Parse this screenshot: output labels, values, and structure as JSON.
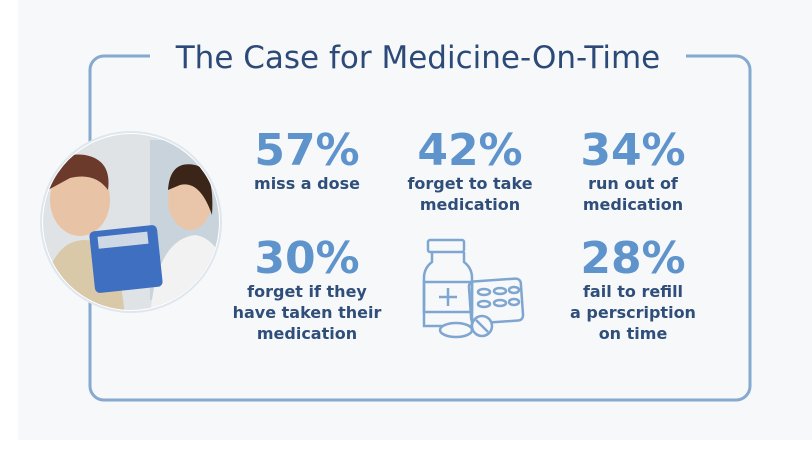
{
  "title": "The Case for Medicine-On-Time",
  "stats": [
    {
      "value": "57%",
      "label": [
        "miss a dose"
      ]
    },
    {
      "value": "42%",
      "label": [
        "forget to take",
        "medication"
      ]
    },
    {
      "value": "34%",
      "label": [
        "run out of",
        "medication"
      ]
    },
    {
      "value": "30%",
      "label": [
        "forget if they",
        "have taken their",
        "medication"
      ]
    },
    {
      "value": "28%",
      "label": [
        "fail to refill",
        "a perscription",
        "on time"
      ]
    }
  ]
}
